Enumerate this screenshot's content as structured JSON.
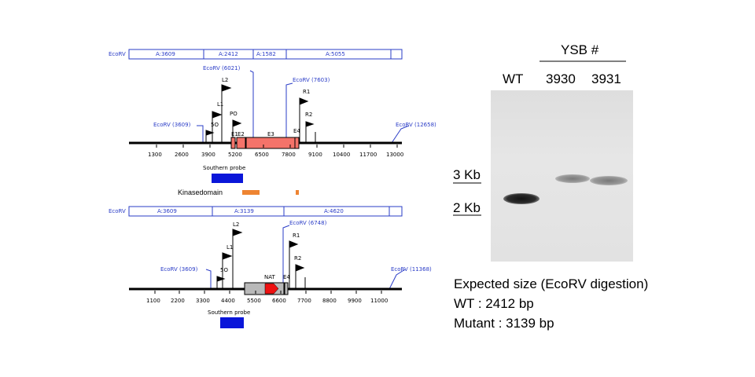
{
  "map_wt": {
    "frag_label": "EcoRV",
    "fragments": [
      "A:3609",
      "A:2412",
      "A:1582",
      "A:5055"
    ],
    "ecorv_sites": [
      "EcoRV (3609)",
      "EcoRV (6021)",
      "EcoRV (7603)",
      "EcoRV (12658)"
    ],
    "primers": [
      "L2",
      "L1",
      "PO",
      "5O",
      "R1",
      "R2"
    ],
    "exons": [
      "E1",
      "E2",
      "E3",
      "E4"
    ],
    "scale": [
      "1300",
      "2600",
      "3900",
      "5200",
      "6500",
      "7800",
      "9100",
      "10400",
      "11700",
      "13000"
    ],
    "probe_label": "Southern probe",
    "kinase_label": "Kinasedomain"
  },
  "map_mut": {
    "frag_label": "EcoRV",
    "fragments": [
      "A:3609",
      "A:3139",
      "A:4620"
    ],
    "ecorv_sites": [
      "EcoRV (3609)",
      "EcoRV (6748)",
      "EcoRV (11368)"
    ],
    "primers": [
      "L2",
      "L1",
      "5O",
      "R1",
      "R2"
    ],
    "labels": [
      "NAT",
      "E4"
    ],
    "scale": [
      "1100",
      "2200",
      "3300",
      "4400",
      "5500",
      "6600",
      "7700",
      "8800",
      "9900",
      "11000"
    ],
    "probe_label": "Southern probe"
  },
  "gel": {
    "header": "YSB #",
    "lanes": [
      "WT",
      "3930",
      "3931"
    ],
    "markers": [
      "3 Kb",
      "2 Kb"
    ]
  },
  "expected": {
    "title": "Expected size (EcoRV digestion)",
    "wt": "WT : 2412 bp",
    "mutant": "Mutant : 3139 bp"
  },
  "colors": {
    "ecorv_blue": "#2a3cc7",
    "exon_salmon": "#f4736a",
    "probe_blue": "#0a16d9",
    "kinase_orange": "#ee8432",
    "nat_red": "#ee1111",
    "nat_gray": "#b9b9b9"
  }
}
